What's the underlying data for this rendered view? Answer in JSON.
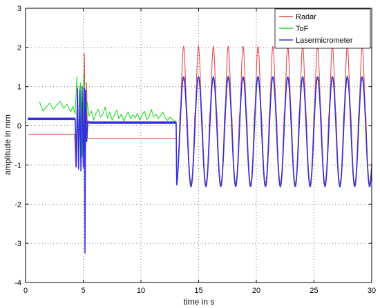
{
  "chart_data": {
    "type": "line",
    "title": "",
    "xlabel": "time in s",
    "ylabel": "amplitude in mm",
    "xlim": [
      0,
      30
    ],
    "ylim": [
      -4,
      3
    ],
    "xticks": [
      0,
      5,
      10,
      15,
      20,
      25,
      30
    ],
    "yticks": [
      -4,
      -3,
      -2,
      -1,
      0,
      1,
      2,
      3
    ],
    "xtick_labels": [
      "0",
      "5",
      "10",
      "15",
      "20",
      "25",
      "30"
    ],
    "ytick_labels": [
      "-4",
      "-3",
      "-2",
      "-1",
      "0",
      "1",
      "2",
      "3"
    ],
    "grid": true,
    "legend_position": "top-right",
    "series": [
      {
        "name": "Radar",
        "color": "#e8494d",
        "segments": [
          {
            "kind": "const",
            "x0": 0.25,
            "x1": 4.25,
            "y": -0.22
          },
          {
            "kind": "points",
            "x": [
              4.25,
              4.35,
              4.5,
              4.6,
              4.7,
              4.8,
              4.9,
              5.0,
              5.1,
              5.2,
              5.3,
              5.35
            ],
            "y": [
              -0.22,
              -1.05,
              0.9,
              -1.1,
              1.0,
              -1.15,
              1.0,
              -1.1,
              1.85,
              -0.8,
              1.1,
              -0.3
            ]
          },
          {
            "kind": "const",
            "x0": 5.35,
            "x1": 13.05,
            "y": -0.32
          },
          {
            "kind": "sine",
            "x0": 13.05,
            "x1": 30.0,
            "center": 0.28,
            "amp": 1.75,
            "period": 1.29,
            "phase": 13.05,
            "y0": -0.32,
            "sharp": true
          }
        ]
      },
      {
        "name": "ToF",
        "color": "#22dd22",
        "segments": [
          {
            "kind": "points",
            "x": [
              1.2,
              1.5,
              1.8,
              2.1,
              2.4,
              2.7,
              3.0,
              3.3,
              3.6,
              3.9,
              4.1,
              4.3,
              4.45,
              4.6,
              4.75,
              4.9,
              5.05,
              5.2,
              5.35,
              5.5,
              5.7,
              5.9,
              6.1,
              6.3,
              6.5,
              6.7,
              6.9,
              7.1,
              7.3,
              7.5,
              7.7,
              7.9,
              8.1,
              8.3,
              8.5,
              8.7,
              8.9,
              9.1,
              9.3,
              9.5,
              9.7,
              9.9,
              10.1,
              10.3,
              10.5,
              10.7,
              10.9,
              11.1,
              11.3,
              11.5,
              11.7,
              11.9,
              12.1,
              12.3,
              12.5,
              12.7,
              12.9,
              13.05
            ],
            "y": [
              0.62,
              0.38,
              0.48,
              0.58,
              0.42,
              0.52,
              0.62,
              0.45,
              0.55,
              0.35,
              0.5,
              0.3,
              1.25,
              -0.5,
              1.1,
              -0.8,
              1.3,
              0.1,
              0.6,
              0.25,
              0.38,
              0.15,
              0.32,
              0.42,
              0.22,
              0.3,
              0.48,
              0.2,
              0.35,
              0.15,
              0.28,
              0.4,
              0.18,
              0.3,
              0.12,
              0.25,
              0.35,
              0.18,
              0.28,
              0.2,
              0.32,
              0.15,
              0.27,
              0.38,
              0.16,
              0.24,
              0.42,
              0.22,
              0.3,
              0.18,
              0.26,
              0.35,
              0.2,
              0.14,
              0.22,
              0.18,
              0.12,
              0.12
            ]
          },
          {
            "kind": "sine",
            "x0": 13.05,
            "x1": 30.0,
            "center": -0.15,
            "amp": 1.38,
            "period": 1.29,
            "phase": 13.05,
            "y0": 0.12,
            "noise": 0.06
          }
        ]
      },
      {
        "name": "Lasermicrometer",
        "color": "#3333dd",
        "segments": [
          {
            "kind": "const",
            "x0": 0.2,
            "x1": 4.3,
            "y": 0.18
          },
          {
            "kind": "points",
            "x": [
              4.3,
              4.4,
              4.5,
              4.6,
              4.7,
              4.8,
              4.9,
              5.0,
              5.1,
              5.15,
              5.2,
              5.3,
              5.4,
              5.5
            ],
            "y": [
              0.18,
              -1.05,
              0.95,
              -1.1,
              0.9,
              -1.15,
              1.0,
              -1.05,
              0.95,
              -3.25,
              0.9,
              -0.4,
              0.12,
              0.08
            ]
          },
          {
            "kind": "const",
            "x0": 5.5,
            "x1": 13.05,
            "y": 0.08
          },
          {
            "kind": "sine",
            "x0": 13.05,
            "x1": 30.0,
            "center": -0.15,
            "amp": 1.4,
            "period": 1.29,
            "phase": 13.05,
            "y0": 0.08
          }
        ]
      }
    ]
  }
}
